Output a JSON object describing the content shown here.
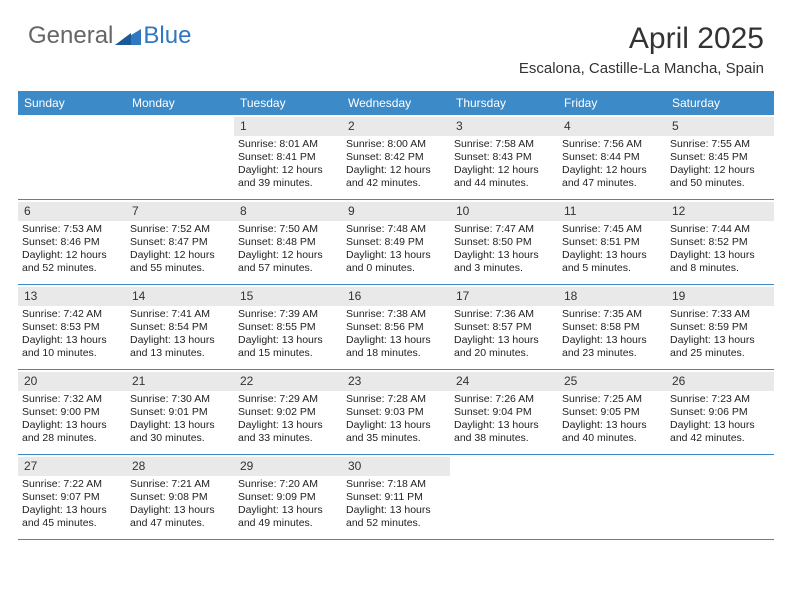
{
  "logo": {
    "general": "General",
    "blue": "Blue"
  },
  "title": "April 2025",
  "location": "Escalona, Castille-La Mancha, Spain",
  "colors": {
    "header_bg": "#3c8ac8",
    "header_text": "#ffffff",
    "daynum_bg": "#e9e9e9",
    "row_divider": "#3c8ac8",
    "logo_blue": "#2f78c1",
    "logo_gray": "#666666"
  },
  "typography": {
    "title_fontsize": 30,
    "location_fontsize": 15,
    "dayname_fontsize": 12,
    "cell_fontsize": 10.5
  },
  "daynames": [
    "Sunday",
    "Monday",
    "Tuesday",
    "Wednesday",
    "Thursday",
    "Friday",
    "Saturday"
  ],
  "weeks": [
    [
      null,
      null,
      {
        "n": "1",
        "sr": "Sunrise: 8:01 AM",
        "ss": "Sunset: 8:41 PM",
        "dl": "Daylight: 12 hours and 39 minutes."
      },
      {
        "n": "2",
        "sr": "Sunrise: 8:00 AM",
        "ss": "Sunset: 8:42 PM",
        "dl": "Daylight: 12 hours and 42 minutes."
      },
      {
        "n": "3",
        "sr": "Sunrise: 7:58 AM",
        "ss": "Sunset: 8:43 PM",
        "dl": "Daylight: 12 hours and 44 minutes."
      },
      {
        "n": "4",
        "sr": "Sunrise: 7:56 AM",
        "ss": "Sunset: 8:44 PM",
        "dl": "Daylight: 12 hours and 47 minutes."
      },
      {
        "n": "5",
        "sr": "Sunrise: 7:55 AM",
        "ss": "Sunset: 8:45 PM",
        "dl": "Daylight: 12 hours and 50 minutes."
      }
    ],
    [
      {
        "n": "6",
        "sr": "Sunrise: 7:53 AM",
        "ss": "Sunset: 8:46 PM",
        "dl": "Daylight: 12 hours and 52 minutes."
      },
      {
        "n": "7",
        "sr": "Sunrise: 7:52 AM",
        "ss": "Sunset: 8:47 PM",
        "dl": "Daylight: 12 hours and 55 minutes."
      },
      {
        "n": "8",
        "sr": "Sunrise: 7:50 AM",
        "ss": "Sunset: 8:48 PM",
        "dl": "Daylight: 12 hours and 57 minutes."
      },
      {
        "n": "9",
        "sr": "Sunrise: 7:48 AM",
        "ss": "Sunset: 8:49 PM",
        "dl": "Daylight: 13 hours and 0 minutes."
      },
      {
        "n": "10",
        "sr": "Sunrise: 7:47 AM",
        "ss": "Sunset: 8:50 PM",
        "dl": "Daylight: 13 hours and 3 minutes."
      },
      {
        "n": "11",
        "sr": "Sunrise: 7:45 AM",
        "ss": "Sunset: 8:51 PM",
        "dl": "Daylight: 13 hours and 5 minutes."
      },
      {
        "n": "12",
        "sr": "Sunrise: 7:44 AM",
        "ss": "Sunset: 8:52 PM",
        "dl": "Daylight: 13 hours and 8 minutes."
      }
    ],
    [
      {
        "n": "13",
        "sr": "Sunrise: 7:42 AM",
        "ss": "Sunset: 8:53 PM",
        "dl": "Daylight: 13 hours and 10 minutes."
      },
      {
        "n": "14",
        "sr": "Sunrise: 7:41 AM",
        "ss": "Sunset: 8:54 PM",
        "dl": "Daylight: 13 hours and 13 minutes."
      },
      {
        "n": "15",
        "sr": "Sunrise: 7:39 AM",
        "ss": "Sunset: 8:55 PM",
        "dl": "Daylight: 13 hours and 15 minutes."
      },
      {
        "n": "16",
        "sr": "Sunrise: 7:38 AM",
        "ss": "Sunset: 8:56 PM",
        "dl": "Daylight: 13 hours and 18 minutes."
      },
      {
        "n": "17",
        "sr": "Sunrise: 7:36 AM",
        "ss": "Sunset: 8:57 PM",
        "dl": "Daylight: 13 hours and 20 minutes."
      },
      {
        "n": "18",
        "sr": "Sunrise: 7:35 AM",
        "ss": "Sunset: 8:58 PM",
        "dl": "Daylight: 13 hours and 23 minutes."
      },
      {
        "n": "19",
        "sr": "Sunrise: 7:33 AM",
        "ss": "Sunset: 8:59 PM",
        "dl": "Daylight: 13 hours and 25 minutes."
      }
    ],
    [
      {
        "n": "20",
        "sr": "Sunrise: 7:32 AM",
        "ss": "Sunset: 9:00 PM",
        "dl": "Daylight: 13 hours and 28 minutes."
      },
      {
        "n": "21",
        "sr": "Sunrise: 7:30 AM",
        "ss": "Sunset: 9:01 PM",
        "dl": "Daylight: 13 hours and 30 minutes."
      },
      {
        "n": "22",
        "sr": "Sunrise: 7:29 AM",
        "ss": "Sunset: 9:02 PM",
        "dl": "Daylight: 13 hours and 33 minutes."
      },
      {
        "n": "23",
        "sr": "Sunrise: 7:28 AM",
        "ss": "Sunset: 9:03 PM",
        "dl": "Daylight: 13 hours and 35 minutes."
      },
      {
        "n": "24",
        "sr": "Sunrise: 7:26 AM",
        "ss": "Sunset: 9:04 PM",
        "dl": "Daylight: 13 hours and 38 minutes."
      },
      {
        "n": "25",
        "sr": "Sunrise: 7:25 AM",
        "ss": "Sunset: 9:05 PM",
        "dl": "Daylight: 13 hours and 40 minutes."
      },
      {
        "n": "26",
        "sr": "Sunrise: 7:23 AM",
        "ss": "Sunset: 9:06 PM",
        "dl": "Daylight: 13 hours and 42 minutes."
      }
    ],
    [
      {
        "n": "27",
        "sr": "Sunrise: 7:22 AM",
        "ss": "Sunset: 9:07 PM",
        "dl": "Daylight: 13 hours and 45 minutes."
      },
      {
        "n": "28",
        "sr": "Sunrise: 7:21 AM",
        "ss": "Sunset: 9:08 PM",
        "dl": "Daylight: 13 hours and 47 minutes."
      },
      {
        "n": "29",
        "sr": "Sunrise: 7:20 AM",
        "ss": "Sunset: 9:09 PM",
        "dl": "Daylight: 13 hours and 49 minutes."
      },
      {
        "n": "30",
        "sr": "Sunrise: 7:18 AM",
        "ss": "Sunset: 9:11 PM",
        "dl": "Daylight: 13 hours and 52 minutes."
      },
      null,
      null,
      null
    ]
  ]
}
